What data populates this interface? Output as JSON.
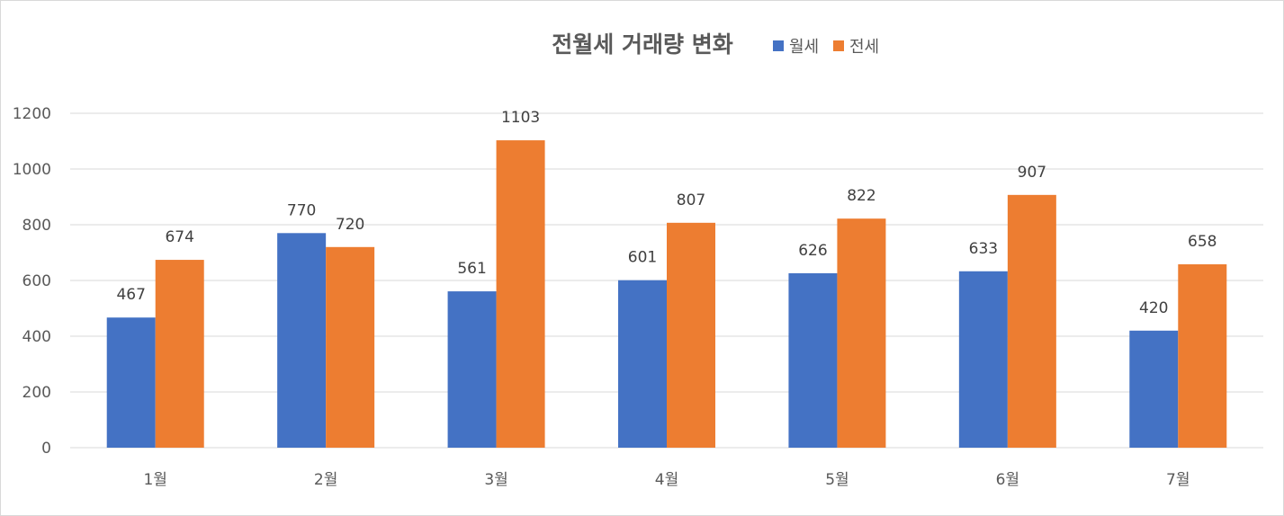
{
  "chart_data": {
    "type": "bar",
    "title": "전월세 거래량 변화",
    "xlabel": "",
    "ylabel": "",
    "categories": [
      "1월",
      "2월",
      "3월",
      "4월",
      "5월",
      "6월",
      "7월"
    ],
    "series": [
      {
        "name": "월세",
        "color": "#4472c4",
        "values": [
          467,
          770,
          561,
          601,
          626,
          633,
          420
        ]
      },
      {
        "name": "전세",
        "color": "#ed7d31",
        "values": [
          674,
          720,
          1103,
          807,
          822,
          907,
          658
        ]
      }
    ],
    "ylim": [
      0,
      1200
    ],
    "yticks": [
      "0",
      "200",
      "400",
      "600",
      "800",
      "1000",
      "1200"
    ],
    "grid": true,
    "legend_position": "top, right of title",
    "data_labels": true
  }
}
